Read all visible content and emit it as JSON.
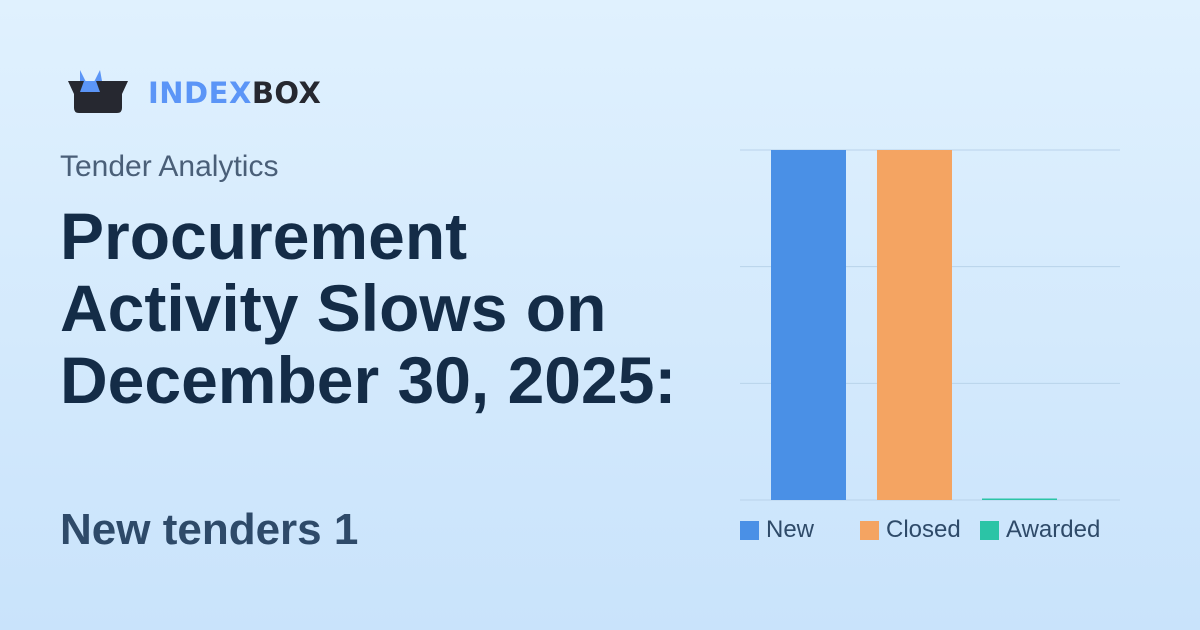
{
  "brand": {
    "part1": "INDEX",
    "part2": "BOX",
    "logo_colors": {
      "box": "#262830",
      "ears": "#5b95f7"
    }
  },
  "subtitle": "Tender Analytics",
  "title": "Procurement Activity Slows on December 30, 2025:",
  "stat": "New tenders 1",
  "chart_data": {
    "type": "bar",
    "categories": [
      "New",
      "Closed",
      "Awarded"
    ],
    "values": [
      1,
      1,
      0
    ],
    "colors": [
      "#4a90e6",
      "#f4a462",
      "#2bc4a6"
    ],
    "ylim": [
      0,
      1
    ],
    "grid": true,
    "legend": {
      "placement": "bottom",
      "entries": [
        "New",
        "Closed",
        "Awarded"
      ]
    },
    "title": "",
    "xlabel": "",
    "ylabel": ""
  }
}
